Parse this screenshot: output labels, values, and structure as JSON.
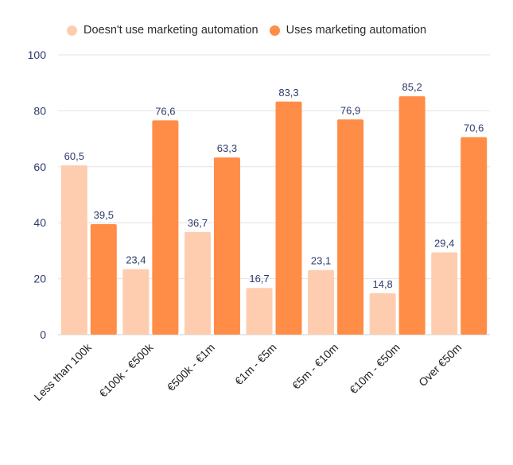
{
  "chart_data": {
    "type": "bar",
    "categories": [
      "Less than 100k",
      "€100k - €500k",
      "€500k - €1m",
      "€1m - €5m",
      "€5m - €10m",
      "€10m - €50m",
      "Over €50m"
    ],
    "series": [
      {
        "name": "Doesn't use marketing automation",
        "values": [
          60.5,
          23.4,
          36.7,
          16.7,
          23.1,
          14.8,
          29.4
        ],
        "labels": [
          "60,5",
          "23,4",
          "36,7",
          "16,7",
          "23,1",
          "14,8",
          "29,4"
        ],
        "color": "#FECDB0"
      },
      {
        "name": "Uses marketing automation",
        "values": [
          39.5,
          76.6,
          63.3,
          83.3,
          76.9,
          85.2,
          70.6
        ],
        "labels": [
          "39,5",
          "76,6",
          "63,3",
          "83,3",
          "76,9",
          "85,2",
          "70,6"
        ],
        "color": "#FF8D47"
      }
    ],
    "ylim": [
      0,
      100
    ],
    "yticks": [
      "0",
      "20",
      "40",
      "60",
      "80",
      "100"
    ],
    "grid": true,
    "legend_position": "top",
    "tick_color": "#2E3A6B",
    "label_color": "#2E3A6B"
  }
}
